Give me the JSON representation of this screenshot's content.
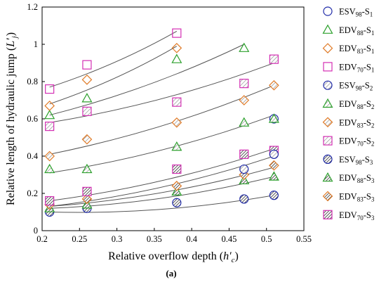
{
  "chart_data": {
    "type": "scatter",
    "xlabel": "Relative overflow depth (h′c)",
    "xlabel_parts": [
      "Relative overflow depth (",
      "h′",
      "c",
      ")"
    ],
    "ylabel": "Relative length of hydraulic jump (L′j)",
    "ylabel_parts": [
      "Relative length of hydraulic jump (",
      "L′",
      "j",
      ")"
    ],
    "caption": "(a)",
    "xlim": [
      0.2,
      0.55
    ],
    "ylim": [
      0,
      1.2
    ],
    "x_ticks": [
      0.2,
      0.25,
      0.3,
      0.35,
      0.4,
      0.45,
      0.5,
      0.55
    ],
    "x_tick_labels": [
      "0.2",
      "0.25",
      "0.3",
      "0.35",
      "0.4",
      "0.45",
      "0.5",
      "0.55"
    ],
    "y_ticks": [
      0,
      0.2,
      0.4,
      0.6,
      0.8,
      1.0,
      1.2
    ],
    "y_tick_labels": [
      "0",
      "0.2",
      "0.4",
      "0.6",
      "0.8",
      "1",
      "1.2"
    ],
    "grid": false,
    "legend_position": "right",
    "series": [
      {
        "name": "ESV98-S1",
        "name_base": "ESV",
        "name_sub1": "98",
        "name_mid": "-S",
        "name_sub2": "1",
        "marker": "circle",
        "fill": "none",
        "color": "#1f2aa8",
        "x": [],
        "y": []
      },
      {
        "name": "EDV88-S1",
        "name_base": "EDV",
        "name_sub1": "88",
        "name_mid": "-S",
        "name_sub2": "1",
        "marker": "triangle",
        "fill": "none",
        "color": "#2ca02c",
        "x": [
          0.21,
          0.26,
          0.38,
          0.47
        ],
        "y": [
          0.62,
          0.71,
          0.92,
          0.98
        ]
      },
      {
        "name": "EDV83-S1",
        "name_base": "EDV",
        "name_sub1": "83",
        "name_mid": "-S",
        "name_sub2": "1",
        "marker": "diamond",
        "fill": "none",
        "color": "#e07b28",
        "x": [
          0.21,
          0.26,
          0.38
        ],
        "y": [
          0.67,
          0.81,
          0.98
        ]
      },
      {
        "name": "EDV70-S1",
        "name_base": "EDV",
        "name_sub1": "70",
        "name_mid": "-S",
        "name_sub2": "1",
        "marker": "square",
        "fill": "none",
        "color": "#d42fb4",
        "x": [
          0.21,
          0.26,
          0.38
        ],
        "y": [
          0.76,
          0.89,
          1.06
        ]
      },
      {
        "name": "ESV98-S2",
        "name_base": "ESV",
        "name_sub1": "98",
        "name_mid": "-S",
        "name_sub2": "2",
        "marker": "circle",
        "fill": "light",
        "color": "#1f2aa8",
        "x": [
          0.51
        ],
        "y": [
          0.6
        ]
      },
      {
        "name": "EDV88-S2",
        "name_base": "EDV",
        "name_sub1": "88",
        "name_mid": "-S",
        "name_sub2": "2",
        "marker": "triangle",
        "fill": "light",
        "color": "#2ca02c",
        "x": [
          0.21,
          0.26,
          0.38,
          0.47,
          0.51
        ],
        "y": [
          0.33,
          0.33,
          0.45,
          0.58,
          0.6
        ]
      },
      {
        "name": "EDV83-S2",
        "name_base": "EDV",
        "name_sub1": "83",
        "name_mid": "-S",
        "name_sub2": "2",
        "marker": "diamond",
        "fill": "light",
        "color": "#e07b28",
        "x": [
          0.21,
          0.26,
          0.38,
          0.47,
          0.51
        ],
        "y": [
          0.4,
          0.49,
          0.58,
          0.7,
          0.78
        ]
      },
      {
        "name": "EDV70-S2",
        "name_base": "EDV",
        "name_sub1": "70",
        "name_mid": "-S",
        "name_sub2": "2",
        "marker": "square",
        "fill": "light",
        "color": "#d42fb4",
        "x": [
          0.21,
          0.26,
          0.38,
          0.47,
          0.51
        ],
        "y": [
          0.56,
          0.64,
          0.69,
          0.79,
          0.92
        ]
      },
      {
        "name": "ESV98-S3",
        "name_base": "ESV",
        "name_sub1": "98",
        "name_mid": "-S",
        "name_sub2": "3",
        "marker": "circle",
        "fill": "dense",
        "color": "#1f2aa8",
        "x": [
          0.21,
          0.26,
          0.38,
          0.47,
          0.51
        ],
        "y": [
          0.1,
          0.12,
          0.15,
          0.17,
          0.19
        ]
      },
      {
        "name": "EDV88-S3",
        "name_base": "EDV",
        "name_sub1": "88",
        "name_mid": "-S",
        "name_sub2": "3",
        "marker": "triangle",
        "fill": "dense",
        "color": "#2ca02c",
        "x": [
          0.21,
          0.26,
          0.38,
          0.47,
          0.51
        ],
        "y": [
          0.12,
          0.14,
          0.21,
          0.27,
          0.29
        ]
      },
      {
        "name": "EDV83-S3",
        "name_base": "EDV",
        "name_sub1": "83",
        "name_mid": "-S",
        "name_sub2": "3",
        "marker": "diamond",
        "fill": "dense",
        "color": "#e07b28",
        "x": [
          0.21,
          0.26,
          0.38,
          0.47,
          0.51
        ],
        "y": [
          0.14,
          0.17,
          0.24,
          0.3,
          0.35
        ]
      },
      {
        "name": "EDV70-S3",
        "name_base": "EDV",
        "name_sub1": "70",
        "name_mid": "-S",
        "name_sub2": "3",
        "marker": "square",
        "fill": "dense",
        "color": "#d42fb4",
        "x": [
          0.21,
          0.26,
          0.38,
          0.47,
          0.51
        ],
        "y": [
          0.16,
          0.21,
          0.33,
          0.41,
          0.43
        ]
      }
    ],
    "extra_points": [
      {
        "marker": "circle",
        "fill": "light",
        "color": "#1f2aa8",
        "x": 0.47,
        "y": 0.33
      },
      {
        "marker": "circle",
        "fill": "light",
        "color": "#1f2aa8",
        "x": 0.51,
        "y": 0.41
      }
    ],
    "trendlines": [
      {
        "x": [
          0.21,
          0.38
        ],
        "y": [
          0.77,
          1.07
        ]
      },
      {
        "x": [
          0.21,
          0.38
        ],
        "y": [
          0.68,
          0.99
        ]
      },
      {
        "x": [
          0.21,
          0.47
        ],
        "y": [
          0.62,
          1.0
        ]
      },
      {
        "x": [
          0.21,
          0.51
        ],
        "y": [
          0.58,
          0.9
        ]
      },
      {
        "x": [
          0.21,
          0.51
        ],
        "y": [
          0.41,
          0.78
        ]
      },
      {
        "x": [
          0.21,
          0.51
        ],
        "y": [
          0.31,
          0.62
        ]
      },
      {
        "x": [
          0.21,
          0.51
        ],
        "y": [
          0.16,
          0.44
        ]
      },
      {
        "x": [
          0.21,
          0.51
        ],
        "y": [
          0.13,
          0.4
        ]
      },
      {
        "x": [
          0.21,
          0.51
        ],
        "y": [
          0.13,
          0.34
        ]
      },
      {
        "x": [
          0.21,
          0.51
        ],
        "y": [
          0.12,
          0.29
        ]
      },
      {
        "x": [
          0.21,
          0.51
        ],
        "y": [
          0.1,
          0.19
        ]
      }
    ]
  }
}
